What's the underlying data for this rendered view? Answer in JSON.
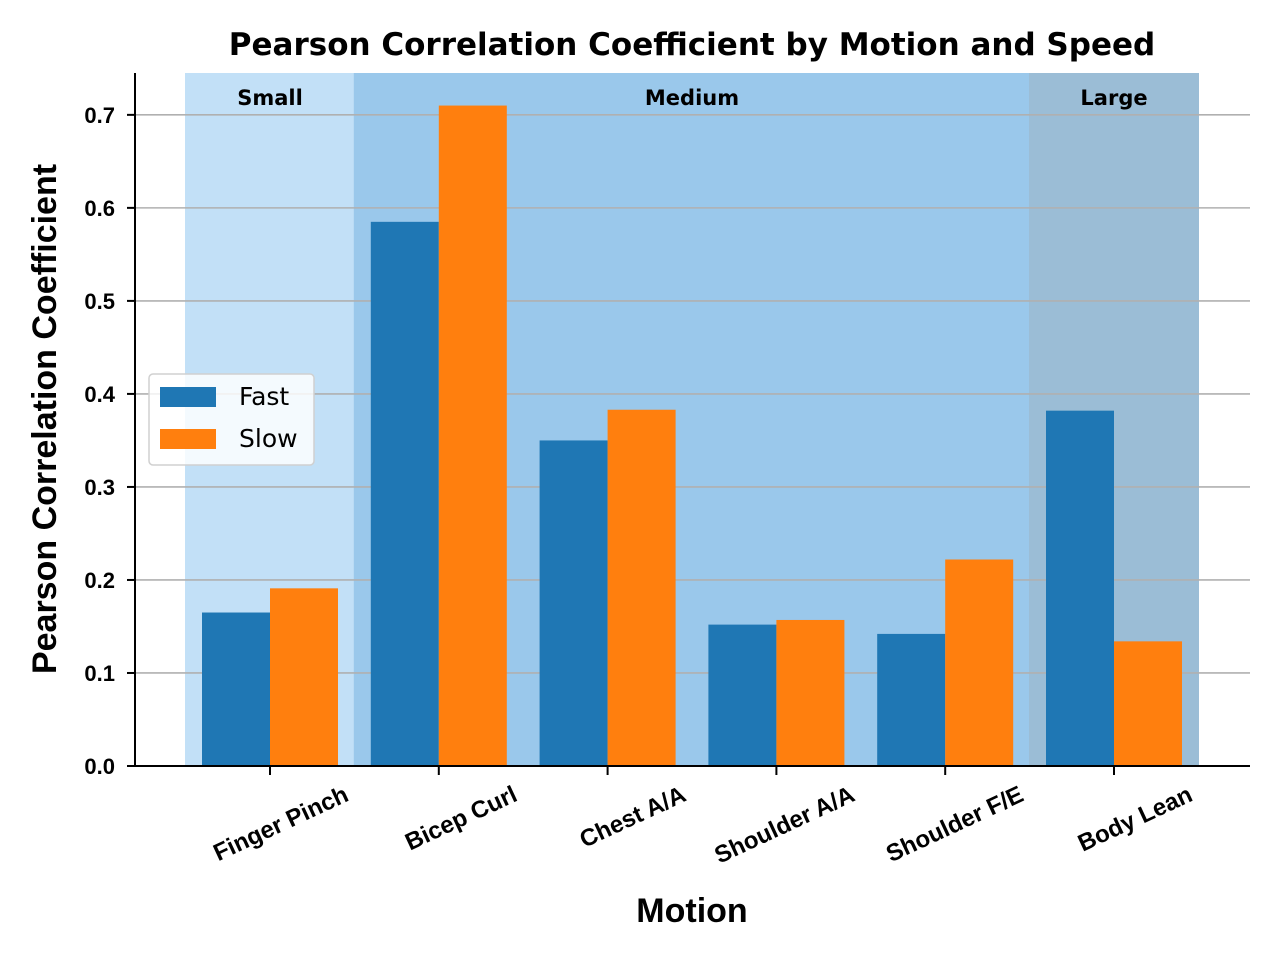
{
  "chart_data": {
    "type": "bar",
    "title": "Pearson Correlation Coefficient by Motion and Speed",
    "xlabel": "Motion",
    "ylabel": "Pearson Correlation Coefficient",
    "categories": [
      "Finger Pinch",
      "Bicep Curl",
      "Chest A/A",
      "Shoulder A/A",
      "Shoulder F/E",
      "Body Lean"
    ],
    "series": [
      {
        "name": "Fast",
        "color": "#1f77b4",
        "values": [
          0.165,
          0.585,
          0.35,
          0.152,
          0.142,
          0.382
        ]
      },
      {
        "name": "Slow",
        "color": "#ff7f0e",
        "values": [
          0.191,
          0.71,
          0.383,
          0.157,
          0.222,
          0.134
        ]
      }
    ],
    "ylim": [
      0,
      0.745
    ],
    "yticks": [
      "0.0",
      "0.1",
      "0.2",
      "0.3",
      "0.4",
      "0.5",
      "0.6",
      "0.7"
    ],
    "ytick_values": [
      0,
      0.1,
      0.2,
      0.3,
      0.4,
      0.5,
      0.6,
      0.7
    ],
    "grid": "horizontal",
    "legend_position": "center-left",
    "regions": [
      {
        "label": "Small",
        "from_category": 0,
        "to_category": 0,
        "color": "#c2e0f7"
      },
      {
        "label": "Medium",
        "from_category": 1,
        "to_category": 4,
        "color": "#9ac8eb"
      },
      {
        "label": "Large",
        "from_category": 5,
        "to_category": 5,
        "color": "#9bbdd6"
      }
    ]
  }
}
